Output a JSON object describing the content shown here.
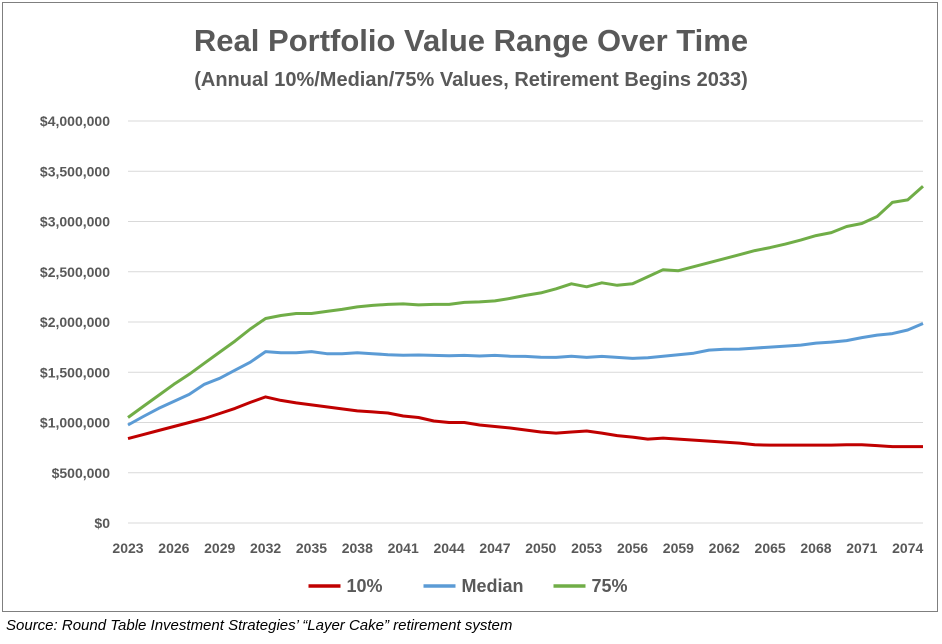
{
  "chart_data": {
    "type": "line",
    "title": "Real Portfolio Value Range Over Time",
    "subtitle": "(Annual 10%/Median/75% Values, Retirement Begins 2033)",
    "ylim": [
      0,
      4000000
    ],
    "yticks": [
      0,
      500000,
      1000000,
      1500000,
      2000000,
      2500000,
      3000000,
      3500000,
      4000000
    ],
    "ytick_labels": [
      "$0",
      "$500,000",
      "$1,000,000",
      "$1,500,000",
      "$2,000,000",
      "$2,500,000",
      "$3,000,000",
      "$3,500,000",
      "$4,000,000"
    ],
    "xlim": [
      2023,
      2075
    ],
    "xticks": [
      2023,
      2026,
      2029,
      2032,
      2035,
      2038,
      2041,
      2044,
      2047,
      2050,
      2053,
      2056,
      2059,
      2062,
      2065,
      2068,
      2071,
      2074
    ],
    "grid": "horizontal",
    "legend_position": "bottom",
    "x": [
      2023,
      2024,
      2025,
      2026,
      2027,
      2028,
      2029,
      2030,
      2031,
      2032,
      2033,
      2034,
      2035,
      2036,
      2037,
      2038,
      2039,
      2040,
      2041,
      2042,
      2043,
      2044,
      2045,
      2046,
      2047,
      2048,
      2049,
      2050,
      2051,
      2052,
      2053,
      2054,
      2055,
      2056,
      2057,
      2058,
      2059,
      2060,
      2061,
      2062,
      2063,
      2064,
      2065,
      2066,
      2067,
      2068,
      2069,
      2070,
      2071,
      2072,
      2073,
      2074,
      2075
    ],
    "series": [
      {
        "name": "10%",
        "color": "#c00000",
        "values": [
          840000,
          880000,
          920000,
          960000,
          1000000,
          1040000,
          1090000,
          1140000,
          1200000,
          1255000,
          1220000,
          1195000,
          1175000,
          1155000,
          1135000,
          1115000,
          1105000,
          1095000,
          1065000,
          1050000,
          1015000,
          1000000,
          1000000,
          975000,
          960000,
          945000,
          925000,
          905000,
          895000,
          905000,
          915000,
          895000,
          870000,
          855000,
          835000,
          845000,
          835000,
          825000,
          815000,
          805000,
          795000,
          778000,
          775000,
          775000,
          775000,
          775000,
          775000,
          778000,
          778000,
          770000,
          760000,
          760000,
          760000
        ]
      },
      {
        "name": "Median",
        "color": "#5b9bd5",
        "values": [
          975000,
          1060000,
          1140000,
          1210000,
          1280000,
          1380000,
          1440000,
          1520000,
          1600000,
          1705000,
          1695000,
          1695000,
          1705000,
          1685000,
          1685000,
          1695000,
          1685000,
          1675000,
          1670000,
          1672000,
          1668000,
          1665000,
          1668000,
          1662000,
          1668000,
          1660000,
          1658000,
          1650000,
          1648000,
          1660000,
          1648000,
          1658000,
          1648000,
          1638000,
          1645000,
          1660000,
          1675000,
          1690000,
          1720000,
          1728000,
          1730000,
          1740000,
          1750000,
          1760000,
          1770000,
          1790000,
          1800000,
          1815000,
          1845000,
          1870000,
          1885000,
          1920000,
          1985000
        ]
      },
      {
        "name": "75%",
        "color": "#70ad47",
        "values": [
          1050000,
          1160000,
          1270000,
          1380000,
          1480000,
          1590000,
          1700000,
          1810000,
          1930000,
          2035000,
          2065000,
          2085000,
          2085000,
          2105000,
          2125000,
          2150000,
          2165000,
          2175000,
          2180000,
          2170000,
          2175000,
          2175000,
          2195000,
          2200000,
          2210000,
          2235000,
          2265000,
          2290000,
          2330000,
          2380000,
          2350000,
          2390000,
          2365000,
          2380000,
          2450000,
          2520000,
          2510000,
          2550000,
          2590000,
          2630000,
          2670000,
          2710000,
          2740000,
          2775000,
          2815000,
          2860000,
          2890000,
          2950000,
          2980000,
          3050000,
          3190000,
          3215000,
          3350000
        ]
      }
    ]
  },
  "source": "Source: Round Table Investment Strategies’ “Layer Cake” retirement system"
}
